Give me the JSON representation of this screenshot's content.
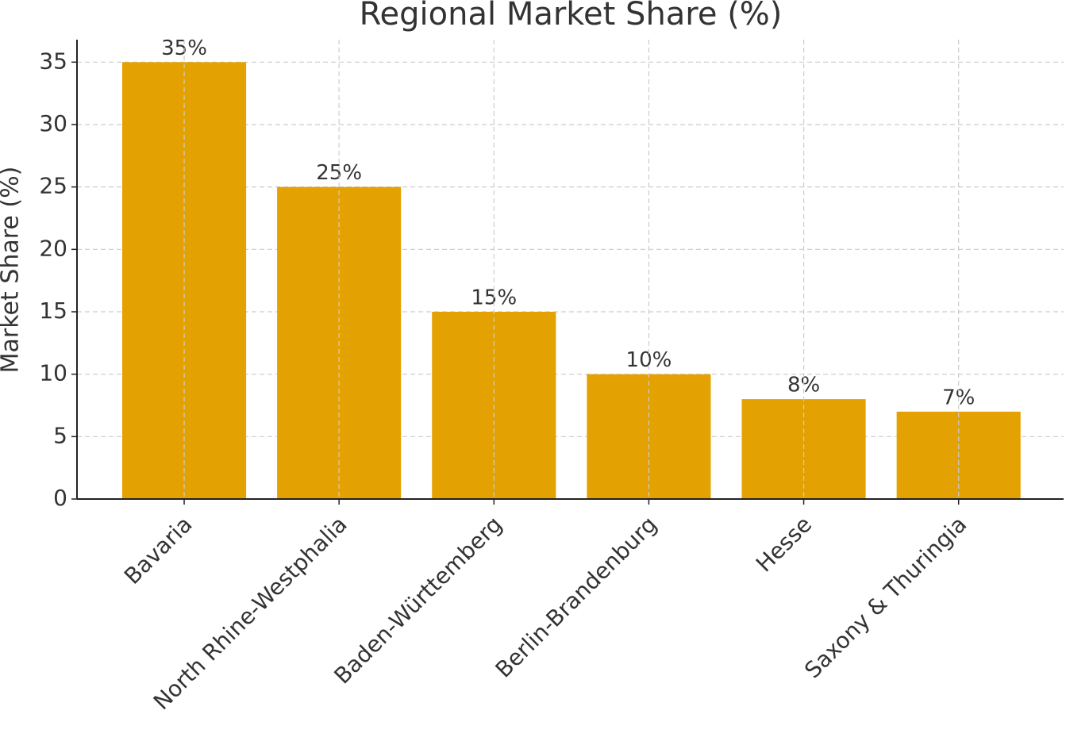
{
  "chart_data": {
    "type": "bar",
    "title": "Regional Market Share (%)",
    "y_label": "Market Share (%)",
    "categories": [
      "Bavaria",
      "North Rhine-Westphalia",
      "Baden-Württemberg",
      "Berlin-Brandenburg",
      "Hesse",
      "Saxony & Thuringia"
    ],
    "values": [
      35,
      25,
      15,
      10,
      8,
      7
    ],
    "value_labels": [
      "35%",
      "25%",
      "15%",
      "10%",
      "8%",
      "7%"
    ],
    "color": "#e3a102",
    "ylim": [
      0,
      36.8
    ],
    "yticks": [
      0,
      5,
      10,
      15,
      20,
      25,
      30,
      35
    ],
    "grid": true
  }
}
